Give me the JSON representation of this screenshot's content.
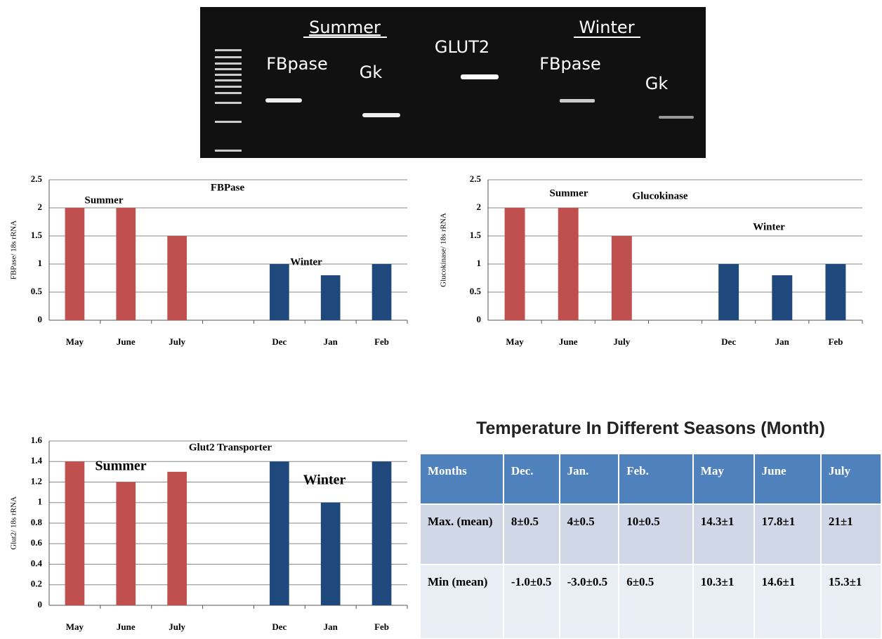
{
  "gel": {
    "groups": [
      "Summer",
      "Winter"
    ],
    "lanes": [
      "FBpase",
      "Gk",
      "GLUT2",
      "FBpase",
      "Gk"
    ]
  },
  "chart_data": [
    {
      "type": "bar",
      "title": "FBPase",
      "y_label": "FBPase/ 18s rRNA",
      "annotations": [
        "Summer",
        "Winter"
      ],
      "categories": [
        "May",
        "June",
        "July",
        null,
        "Dec",
        "Jan",
        "Feb"
      ],
      "values": [
        2,
        2,
        1.5,
        null,
        1,
        0.8,
        1
      ],
      "colors": [
        "#c0504d",
        "#c0504d",
        "#c0504d",
        null,
        "#1f497d",
        "#1f497d",
        "#1f497d"
      ],
      "ylim": [
        0,
        2.5
      ],
      "yticks": [
        0,
        0.5,
        1,
        1.5,
        2,
        2.5
      ],
      "grid": true
    },
    {
      "type": "bar",
      "title": "Glucokinase",
      "y_label": "Glucokinase/ 18s rRNA",
      "annotations": [
        "Summer",
        "Winter"
      ],
      "categories": [
        "May",
        "June",
        "July",
        null,
        "Dec",
        "Jan",
        "Feb"
      ],
      "values": [
        2,
        2,
        1.5,
        null,
        1,
        0.8,
        1
      ],
      "colors": [
        "#c0504d",
        "#c0504d",
        "#c0504d",
        null,
        "#1f497d",
        "#1f497d",
        "#1f497d"
      ],
      "ylim": [
        0,
        2.5
      ],
      "yticks": [
        0,
        0.5,
        1,
        1.5,
        2,
        2.5
      ],
      "grid": true
    },
    {
      "type": "bar",
      "title": "Glut2 Transporter",
      "y_label": "Glut2/ 18s rRNA",
      "annotations": [
        "Summer",
        "Winter"
      ],
      "categories": [
        "May",
        "June",
        "July",
        null,
        "Dec",
        "Jan",
        "Feb"
      ],
      "values": [
        1.4,
        1.2,
        1.3,
        null,
        1.4,
        1.0,
        1.4
      ],
      "colors": [
        "#c0504d",
        "#c0504d",
        "#c0504d",
        null,
        "#1f497d",
        "#1f497d",
        "#1f497d"
      ],
      "ylim": [
        0,
        1.6
      ],
      "yticks": [
        0,
        0.2,
        0.4,
        0.6,
        0.8,
        1,
        1.2,
        1.4,
        1.6
      ],
      "grid": true
    }
  ],
  "table": {
    "title": "Temperature In Different Seasons (Month)",
    "header": [
      "Months",
      "Dec.",
      "Jan.",
      "Feb.",
      "May",
      "June",
      "July"
    ],
    "rows": [
      [
        "Max. (mean)",
        "8±0.5",
        "4±0.5",
        "10±0.5",
        "14.3±1",
        "17.8±1",
        "21±1"
      ],
      [
        "Min (mean)",
        "-1.0±0.5",
        "-3.0±0.5",
        "6±0.5",
        "10.3±1",
        "14.6±1",
        "15.3±1"
      ]
    ]
  }
}
